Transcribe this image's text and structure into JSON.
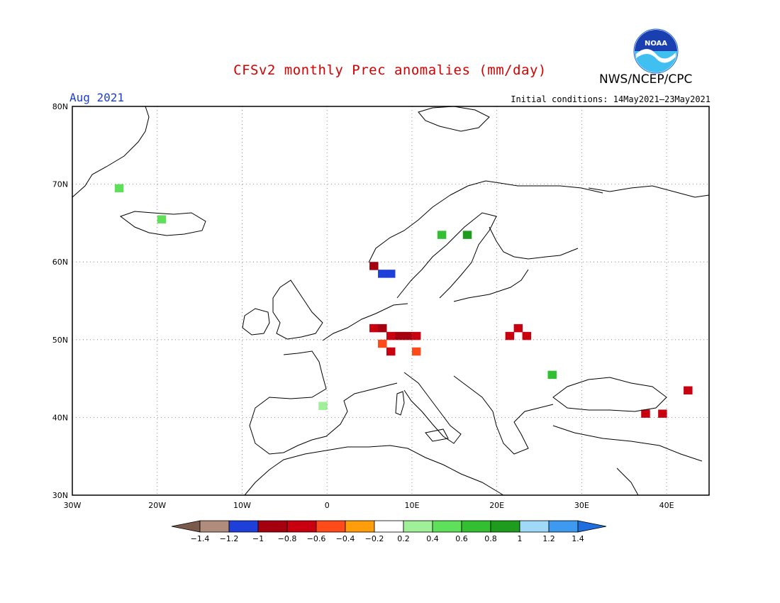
{
  "header": {
    "title": "CFSv2 monthly Prec anomalies (mm/day)",
    "month": "Aug 2021",
    "initial_conditions": "Initial conditions: 14May2021–23May2021",
    "agency": "NWS/NCEP/CPC",
    "logo_icon": "noaa-logo-icon",
    "colors": {
      "title": "#d40000",
      "month": "#1a3cd6"
    }
  },
  "map": {
    "lon_labels": [
      "30W",
      "20W",
      "10W",
      "0",
      "10E",
      "20E",
      "30E",
      "40E"
    ],
    "lat_labels": [
      "80N",
      "70N",
      "60N",
      "50N",
      "40N",
      "30N"
    ],
    "lon_range": [
      -30,
      45
    ],
    "lat_range": [
      30,
      80
    ],
    "grid": "dotted"
  },
  "legend": {
    "labels": [
      "-1.4",
      "-1.2",
      "-1",
      "-0.8",
      "-0.6",
      "-0.4",
      "-0.2",
      "0.2",
      "0.4",
      "0.6",
      "0.8",
      "1",
      "1.2",
      "1.4"
    ],
    "colors": [
      "#7a5a4a",
      "#b08c7c",
      "#1f3fd9",
      "#a50010",
      "#c8000f",
      "#ff4a1a",
      "#ff9d0a",
      "#ffffff",
      "#a0f09a",
      "#5ee05a",
      "#32c032",
      "#1d9c1d",
      "#a0d8f8",
      "#3e9af0",
      "#1e6ee0"
    ]
  },
  "chart_data": {
    "type": "heatmap",
    "title": "CFSv2 monthly Prec anomalies (mm/day)",
    "units": "mm/day",
    "cells": [
      {
        "lon": 5,
        "lat": 51,
        "v": -0.8
      },
      {
        "lon": 6,
        "lat": 51,
        "v": -0.9
      },
      {
        "lon": 7,
        "lat": 50,
        "v": -0.8
      },
      {
        "lon": 8,
        "lat": 50,
        "v": -0.9
      },
      {
        "lon": 9,
        "lat": 50,
        "v": -0.9
      },
      {
        "lon": 10,
        "lat": 50,
        "v": -0.8
      },
      {
        "lon": 6,
        "lat": 49,
        "v": -0.6
      },
      {
        "lon": 7,
        "lat": 48,
        "v": -0.7
      },
      {
        "lon": 10,
        "lat": 48,
        "v": -0.6
      },
      {
        "lon": 21,
        "lat": 50,
        "v": -0.8
      },
      {
        "lon": 22,
        "lat": 51,
        "v": -0.7
      },
      {
        "lon": 23,
        "lat": 50,
        "v": -0.8
      },
      {
        "lon": 6,
        "lat": 58,
        "v": -1.1
      },
      {
        "lon": 7,
        "lat": 58,
        "v": -1.2
      },
      {
        "lon": 5,
        "lat": 59,
        "v": -1.0
      },
      {
        "lon": 37,
        "lat": 40,
        "v": -0.7
      },
      {
        "lon": 39,
        "lat": 40,
        "v": -0.8
      },
      {
        "lon": 42,
        "lat": 43,
        "v": -0.7
      },
      {
        "lon": 16,
        "lat": 63,
        "v": 0.8
      },
      {
        "lon": 13,
        "lat": 63,
        "v": 0.7
      },
      {
        "lon": -20,
        "lat": 65,
        "v": 0.5
      },
      {
        "lon": -25,
        "lat": 69,
        "v": 0.5
      },
      {
        "lon": 26,
        "lat": 45,
        "v": 0.6
      },
      {
        "lon": -1,
        "lat": 41,
        "v": 0.3
      }
    ]
  }
}
